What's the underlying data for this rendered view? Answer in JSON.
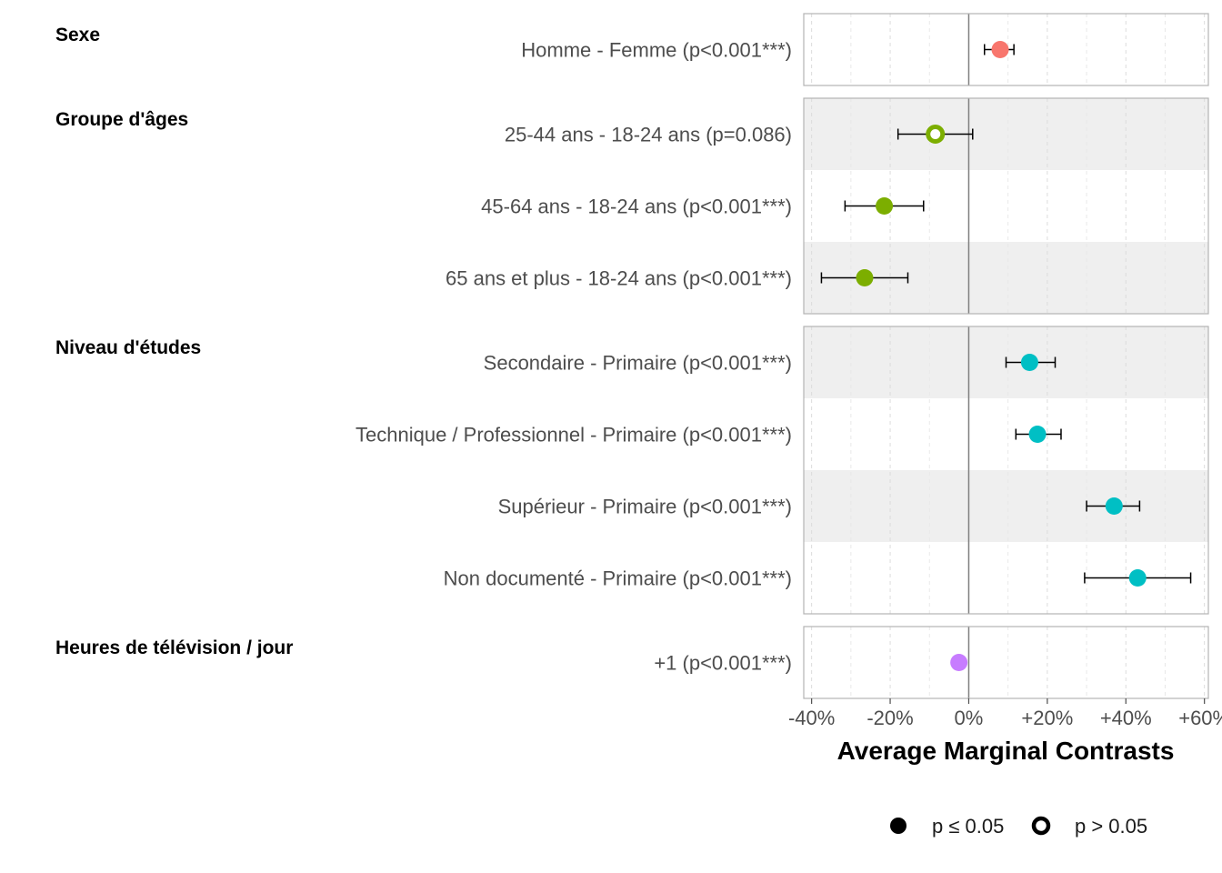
{
  "chart_data": {
    "type": "scatter",
    "subtype": "coefficient-plot with error bars, faceted by group",
    "xlabel": "Average Marginal Contrasts",
    "xlim": [
      -0.42,
      0.61
    ],
    "x_ticks": [
      {
        "value": -0.4,
        "label": "-40%"
      },
      {
        "value": -0.2,
        "label": "-20%"
      },
      {
        "value": 0.0,
        "label": "0%"
      },
      {
        "value": 0.2,
        "label": "+20%"
      },
      {
        "value": 0.4,
        "label": "+40%"
      },
      {
        "value": 0.6,
        "label": "+60%"
      }
    ],
    "reference_line": 0,
    "grid": true,
    "groups": [
      {
        "title": "Sexe",
        "color": "#F8766D",
        "rows": [
          {
            "label": "Homme - Femme (p<0.001***)",
            "estimate": 0.08,
            "low": 0.04,
            "high": 0.115,
            "significant": true
          }
        ]
      },
      {
        "title": "Groupe d'âges",
        "color": "#7CAE00",
        "rows": [
          {
            "label": "25-44 ans - 18-24 ans (p=0.086)",
            "estimate": -0.085,
            "low": -0.18,
            "high": 0.01,
            "significant": false
          },
          {
            "label": "45-64 ans - 18-24 ans (p<0.001***)",
            "estimate": -0.215,
            "low": -0.315,
            "high": -0.115,
            "significant": true
          },
          {
            "label": "65 ans et plus - 18-24 ans (p<0.001***)",
            "estimate": -0.265,
            "low": -0.375,
            "high": -0.155,
            "significant": true
          }
        ]
      },
      {
        "title": "Niveau d'études",
        "color": "#00BFC4",
        "rows": [
          {
            "label": "Secondaire - Primaire (p<0.001***)",
            "estimate": 0.155,
            "low": 0.095,
            "high": 0.22,
            "significant": true
          },
          {
            "label": "Technique / Professionnel - Primaire (p<0.001***)",
            "estimate": 0.175,
            "low": 0.12,
            "high": 0.235,
            "significant": true
          },
          {
            "label": "Supérieur - Primaire (p<0.001***)",
            "estimate": 0.37,
            "low": 0.3,
            "high": 0.435,
            "significant": true
          },
          {
            "label": "Non documenté - Primaire (p<0.001***)",
            "estimate": 0.43,
            "low": 0.295,
            "high": 0.565,
            "significant": true
          }
        ]
      },
      {
        "title": "Heures de télévision / jour",
        "color": "#C77CFF",
        "rows": [
          {
            "label": "+1 (p<0.001***)",
            "estimate": -0.025,
            "low": -0.028,
            "high": -0.022,
            "significant": true
          }
        ]
      }
    ],
    "legend": {
      "position": "bottom",
      "items": [
        {
          "label": "p ≤ 0.05",
          "shape": "filled"
        },
        {
          "label": "p > 0.05",
          "shape": "hollow"
        }
      ]
    }
  }
}
